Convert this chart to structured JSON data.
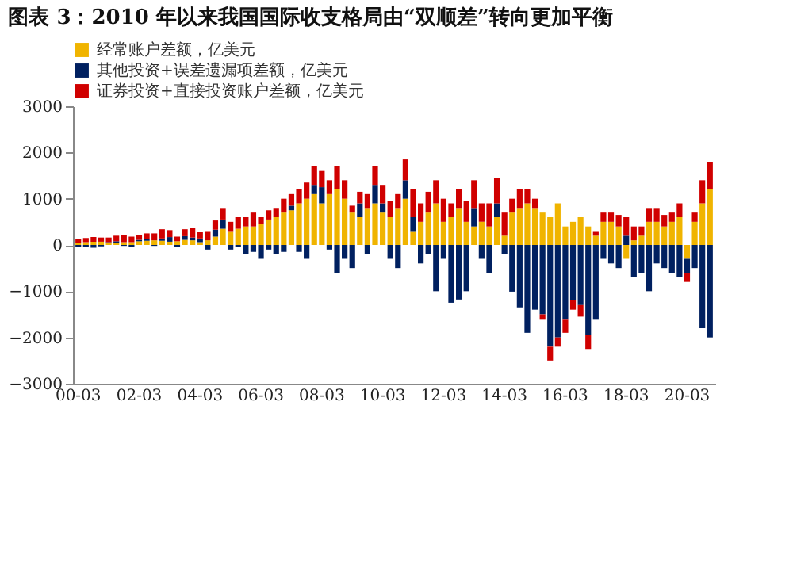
{
  "chart_data": {
    "type": "bar",
    "stacked": true,
    "title": "图表 3：2010 年以来我国国际收支格局由“双顺差”转向更加平衡",
    "categories": [
      "00-03",
      null,
      null,
      null,
      null,
      null,
      null,
      null,
      "02-03",
      null,
      null,
      null,
      null,
      null,
      null,
      null,
      "04-03",
      null,
      null,
      null,
      null,
      null,
      null,
      null,
      "06-03",
      null,
      null,
      null,
      null,
      null,
      null,
      null,
      "08-03",
      null,
      null,
      null,
      null,
      null,
      null,
      null,
      "10-03",
      null,
      null,
      null,
      null,
      null,
      null,
      null,
      "12-03",
      null,
      null,
      null,
      null,
      null,
      null,
      null,
      "14-03",
      null,
      null,
      null,
      null,
      null,
      null,
      null,
      "16-03",
      null,
      null,
      null,
      null,
      null,
      null,
      null,
      "18-03",
      null,
      null,
      null,
      null,
      null,
      null,
      null,
      "20-03",
      null,
      null,
      null
    ],
    "series": [
      {
        "name": "经常账户差额，亿美元",
        "color": "#f0b400",
        "values": [
          50,
          60,
          70,
          70,
          40,
          50,
          60,
          60,
          80,
          90,
          100,
          90,
          70,
          80,
          110,
          100,
          60,
          100,
          180,
          350,
          300,
          350,
          400,
          400,
          450,
          550,
          600,
          700,
          750,
          900,
          1000,
          1100,
          900,
          1100,
          1200,
          1000,
          700,
          600,
          800,
          900,
          700,
          600,
          800,
          1000,
          300,
          500,
          700,
          900,
          500,
          600,
          800,
          500,
          400,
          500,
          400,
          600,
          200,
          700,
          800,
          900,
          800,
          700,
          600,
          900,
          400,
          500,
          600,
          400,
          200,
          500,
          500,
          400,
          -300,
          100,
          200,
          500,
          500,
          400,
          500,
          600,
          -300,
          500,
          900,
          1200
        ]
      },
      {
        "name": "其他投资+误差遗漏项差额，亿美元",
        "color": "#002060",
        "values": [
          -50,
          -40,
          -60,
          -30,
          20,
          30,
          -20,
          -40,
          30,
          40,
          -20,
          50,
          100,
          -50,
          80,
          60,
          80,
          -100,
          150,
          200,
          -100,
          -50,
          -200,
          -150,
          -300,
          -100,
          -200,
          -150,
          100,
          -150,
          -300,
          200,
          350,
          -100,
          -600,
          -300,
          -500,
          300,
          -200,
          400,
          200,
          -300,
          -500,
          400,
          300,
          -400,
          -200,
          -1000,
          -300,
          -1250,
          -1180,
          -1000,
          400,
          -300,
          -600,
          300,
          -200,
          -1010,
          -1350,
          -1900,
          -1400,
          -1500,
          -2200,
          -2000,
          -1600,
          -1200,
          -1300,
          -1950,
          -1600,
          -300,
          -400,
          -500,
          200,
          -700,
          -600,
          -1000,
          -400,
          -500,
          -600,
          -700,
          -300,
          -500,
          -1800,
          -2000
        ]
      },
      {
        "name": "证券投资+直接投资账户差额，亿美元",
        "color": "#d00000",
        "values": [
          80,
          90,
          100,
          90,
          100,
          120,
          150,
          120,
          100,
          120,
          150,
          200,
          150,
          100,
          150,
          200,
          150,
          200,
          200,
          250,
          200,
          250,
          200,
          300,
          150,
          200,
          200,
          300,
          250,
          300,
          350,
          400,
          350,
          300,
          500,
          400,
          150,
          250,
          300,
          400,
          400,
          350,
          300,
          450,
          600,
          400,
          450,
          500,
          500,
          300,
          400,
          450,
          600,
          400,
          500,
          550,
          500,
          300,
          400,
          300,
          200,
          -100,
          -300,
          -200,
          -300,
          -200,
          -250,
          -300,
          100,
          200,
          200,
          250,
          400,
          300,
          200,
          300,
          300,
          250,
          200,
          300,
          -200,
          200,
          500,
          600
        ]
      }
    ],
    "ylim": [
      -3000,
      3000
    ],
    "yticks": [
      -3000,
      -2000,
      -1000,
      0,
      1000,
      2000,
      3000
    ],
    "grid": false,
    "legend": "top"
  }
}
